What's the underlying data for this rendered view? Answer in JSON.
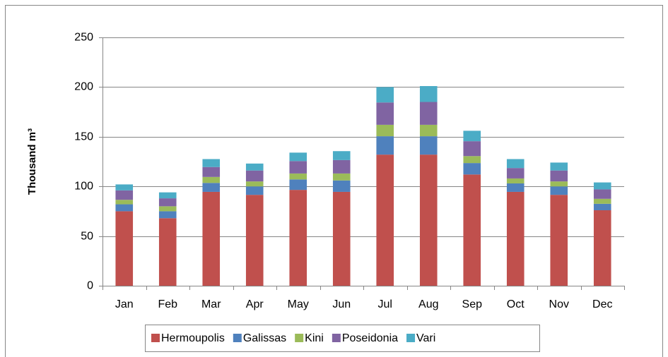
{
  "chart_data": {
    "type": "stacked_bar",
    "y_label": "Thousand m³",
    "categories": [
      "Jan",
      "Feb",
      "Mar",
      "Apr",
      "May",
      "Jun",
      "Jul",
      "Aug",
      "Sep",
      "Oct",
      "Nov",
      "Dec"
    ],
    "series": [
      {
        "name": "Hermoupolis",
        "color": "#c0504d",
        "values": [
          75,
          68,
          94.5,
          91.5,
          96.5,
          94.5,
          132,
          132,
          112,
          94.5,
          91.5,
          76
        ]
      },
      {
        "name": "Galissas",
        "color": "#4f81bd",
        "values": [
          7,
          7,
          9,
          8.5,
          10.5,
          11.5,
          18.5,
          18.5,
          11.5,
          8.5,
          8.5,
          6.5
        ]
      },
      {
        "name": "Kini",
        "color": "#9bbb59",
        "values": [
          4.5,
          5,
          6,
          5,
          6,
          7,
          11.5,
          11.5,
          7,
          5,
          5,
          5
        ]
      },
      {
        "name": "Poseidonia",
        "color": "#8064a2",
        "values": [
          9.5,
          8,
          10,
          11,
          12.5,
          13.5,
          22.5,
          23,
          15,
          10.5,
          11,
          9.5
        ]
      },
      {
        "name": "Vari",
        "color": "#4bacc6",
        "values": [
          6,
          6,
          8,
          7,
          8.5,
          9,
          15.5,
          16,
          10.5,
          9,
          8,
          7
        ]
      }
    ],
    "ylim": [
      0,
      250
    ],
    "yticks": [
      0,
      50,
      100,
      150,
      200,
      250
    ],
    "grid": true
  }
}
